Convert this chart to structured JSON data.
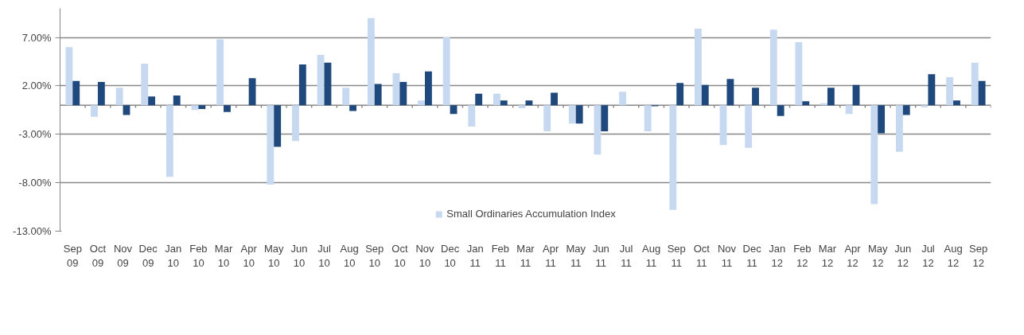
{
  "chart_data": {
    "type": "bar",
    "categories": [
      "Sep 09",
      "Oct 09",
      "Nov 09",
      "Dec 09",
      "Jan 10",
      "Feb 10",
      "Mar 10",
      "Apr 10",
      "May 10",
      "Jun 10",
      "Jul 10",
      "Aug 10",
      "Sep 10",
      "Oct 10",
      "Nov 10",
      "Dec 10",
      "Jan 11",
      "Feb 11",
      "Mar 11",
      "Apr 11",
      "May 11",
      "Jun 11",
      "Jul 11",
      "Aug 11",
      "Sep 11",
      "Oct 11",
      "Nov 11",
      "Dec 11",
      "Jan 12",
      "Feb 12",
      "Mar 12",
      "Apr 12",
      "May 12",
      "Jun 12",
      "Jul 12",
      "Aug 12",
      "Sep 12"
    ],
    "series": [
      {
        "name": "Small Ordinaries Accumulation Index",
        "color": "#c6d9f1",
        "values": [
          6.0,
          -1.2,
          1.8,
          4.3,
          -7.4,
          -0.5,
          6.8,
          0,
          -8.2,
          -3.7,
          5.2,
          1.8,
          9.0,
          3.3,
          0.5,
          7.0,
          -2.2,
          1.2,
          -0.3,
          -2.7,
          -1.9,
          -5.1,
          1.4,
          -2.7,
          -10.8,
          7.9,
          -4.1,
          -4.4,
          7.8,
          6.5,
          0.2,
          -0.9,
          -10.2,
          -4.8,
          -0.2,
          2.9,
          4.4
        ]
      },
      {
        "color": "#1f497d",
        "values": [
          2.5,
          2.4,
          -1.0,
          0.9,
          1.0,
          -0.4,
          -0.7,
          2.8,
          -4.3,
          4.2,
          4.4,
          -0.6,
          2.2,
          2.4,
          3.5,
          -0.9,
          1.2,
          0.5,
          0.5,
          1.3,
          -1.9,
          -2.7,
          0,
          -0.1,
          2.3,
          2.1,
          2.7,
          1.8,
          -1.1,
          0.4,
          1.8,
          2.1,
          -2.9,
          -1.0,
          3.2,
          0.5,
          2.5
        ]
      }
    ],
    "ylim": [
      -13,
      10
    ],
    "yticks": [
      {
        "value": -13,
        "label": "-13.00%"
      },
      {
        "value": -8,
        "label": "-8.00%"
      },
      {
        "value": -3,
        "label": "-3.00%"
      },
      {
        "value": 2,
        "label": "2.00%"
      },
      {
        "value": 7,
        "label": "7.00%"
      }
    ],
    "grid": "y",
    "legend": "bottom"
  }
}
